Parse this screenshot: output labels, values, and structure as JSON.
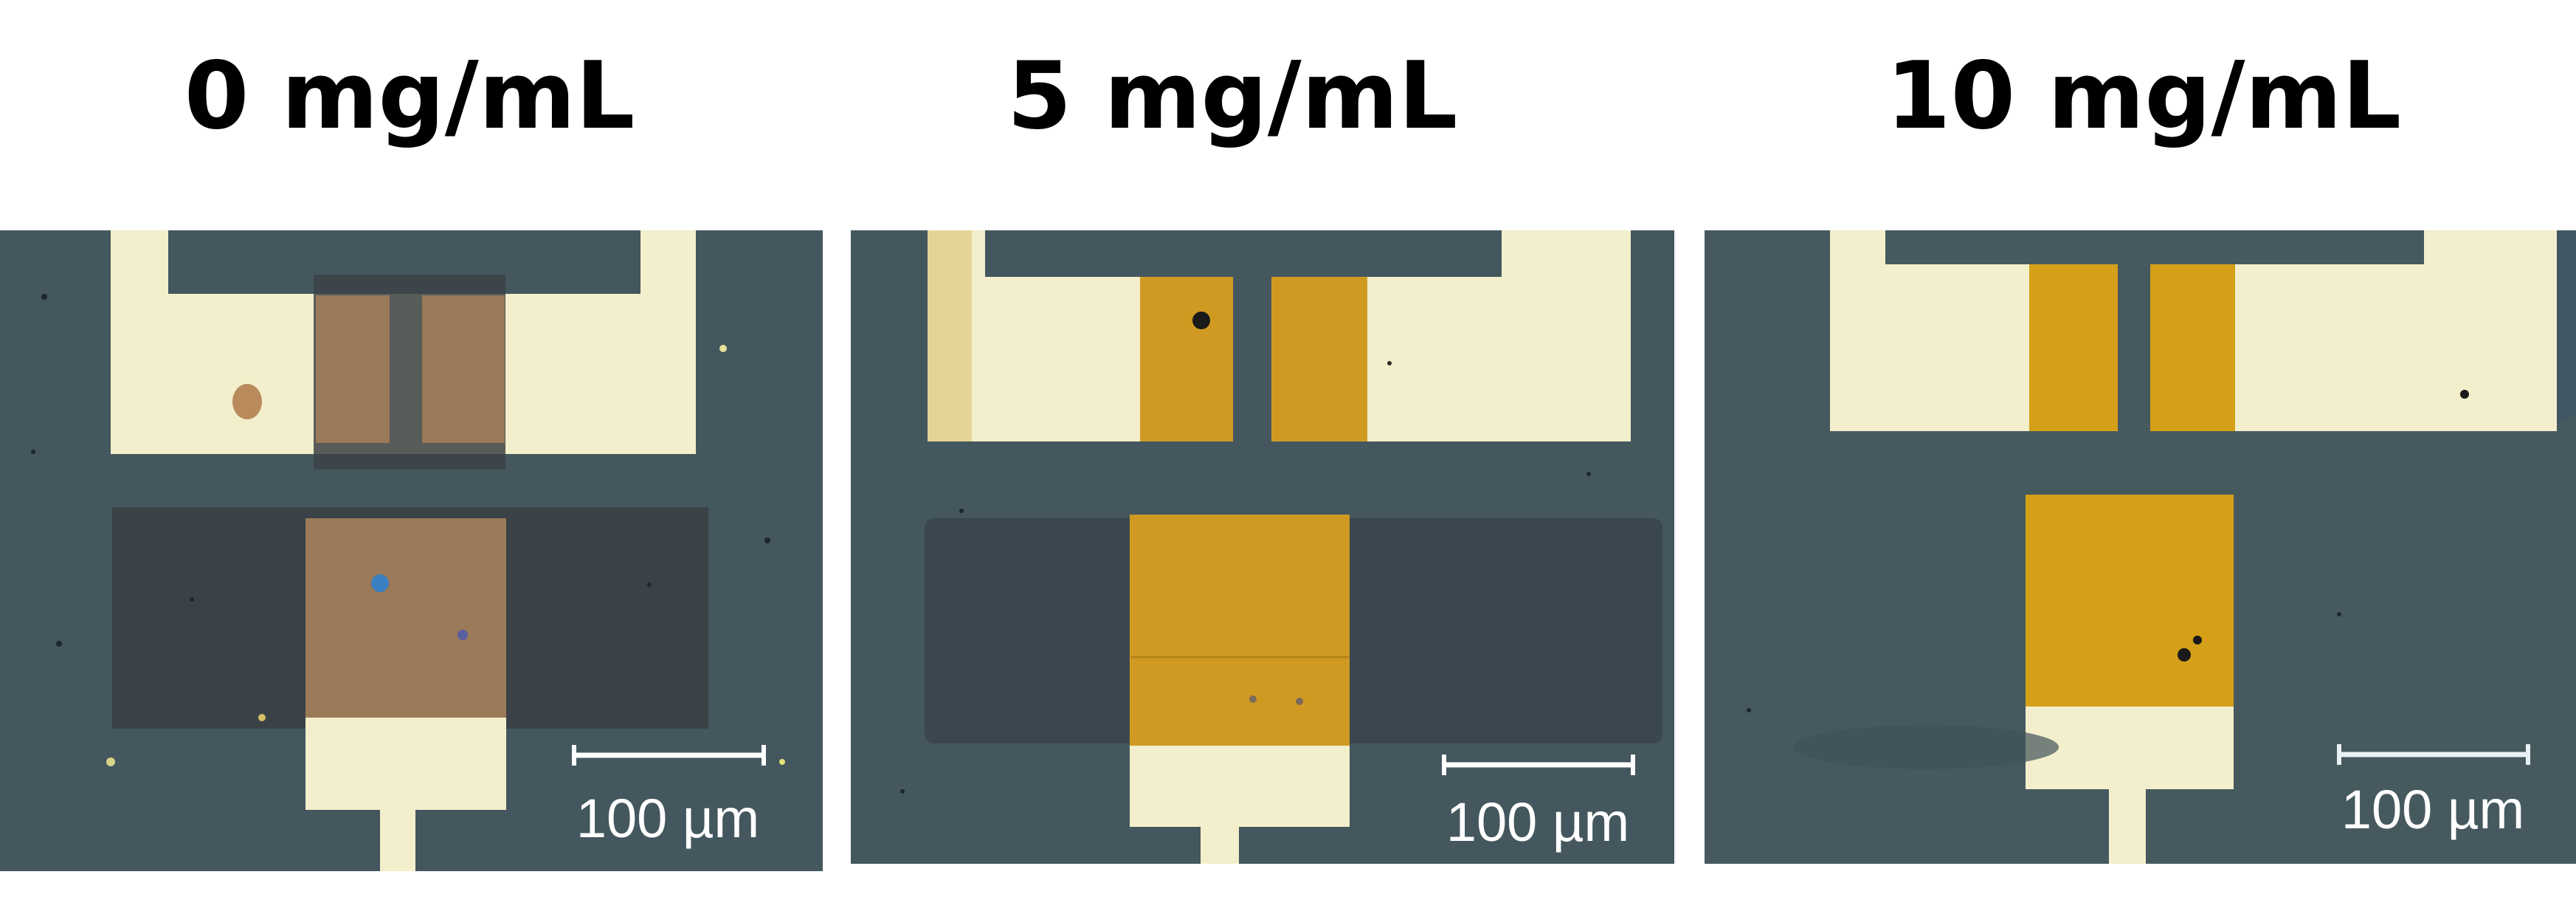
{
  "panels": [
    {
      "title": "0 mg/mL",
      "scale_label": "100 µm"
    },
    {
      "title": "5 mg/mL",
      "scale_label": "100 µm"
    },
    {
      "title": "10 mg/mL",
      "scale_label": "100 µm"
    }
  ],
  "colors": {
    "substrate": "#44575e",
    "gold_electrode": "#f3eecb",
    "film_0": "#9a7a58",
    "film_5": "#d09a22",
    "film_10": "#d5a018",
    "dielectric_0": "#3b4247",
    "dielectric_5": "#3a474f"
  }
}
